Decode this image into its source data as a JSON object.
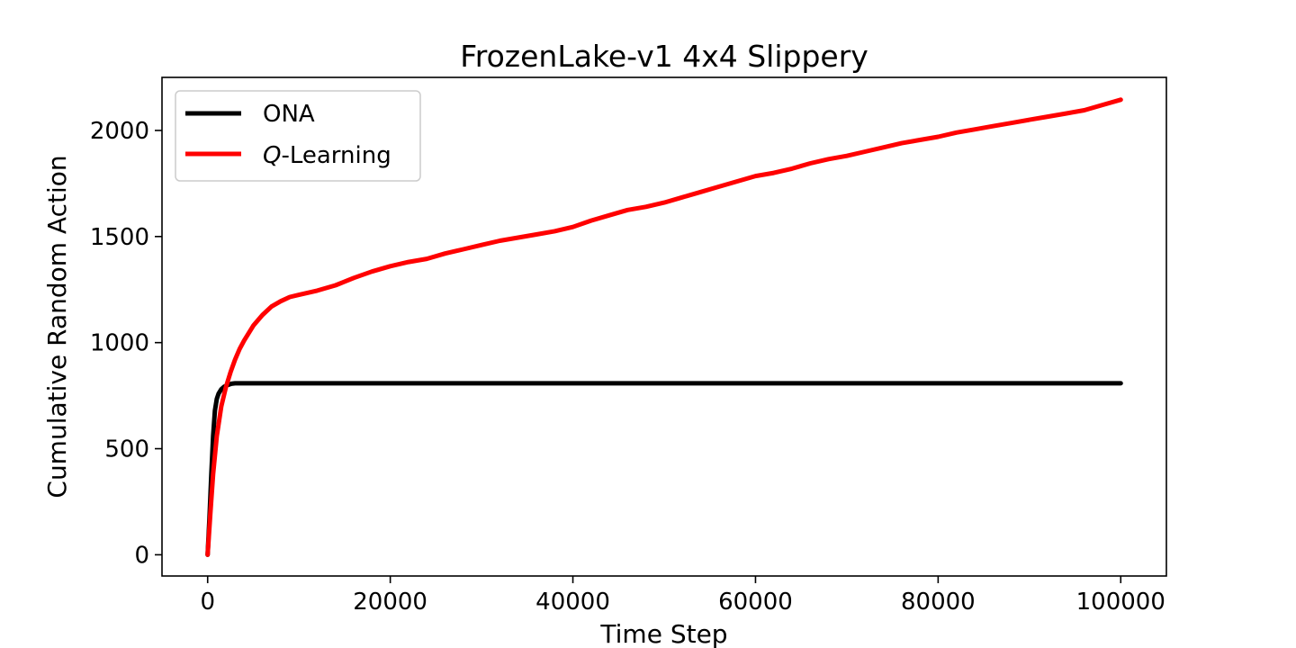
{
  "chart_data": {
    "type": "line",
    "title": "FrozenLake-v1 4x4 Slippery",
    "xlabel": "Time Step",
    "ylabel": "Cumulative Random Action",
    "xlim": [
      -5000,
      105000
    ],
    "ylim": [
      -100,
      2250
    ],
    "xticks": [
      0,
      20000,
      40000,
      60000,
      80000,
      100000
    ],
    "yticks": [
      0,
      500,
      1000,
      1500,
      2000
    ],
    "grid": false,
    "legend_position": "top-left",
    "series": [
      {
        "name": "ONA",
        "color": "#000000",
        "x": [
          0,
          200,
          400,
          600,
          800,
          1000,
          1200,
          1500,
          1800,
          2200,
          2600,
          3000,
          5000,
          10000,
          20000,
          40000,
          60000,
          80000,
          100000
        ],
        "y": [
          0,
          180,
          380,
          560,
          680,
          735,
          760,
          780,
          792,
          800,
          806,
          808,
          808,
          808,
          808,
          808,
          808,
          808,
          808
        ]
      },
      {
        "name": "Q-Learning",
        "name_prefix": "Q",
        "name_suffix": "-Learning",
        "color": "#ff0000",
        "x": [
          0,
          300,
          600,
          1000,
          1500,
          2000,
          2500,
          3000,
          3500,
          4000,
          4500,
          5000,
          6000,
          7000,
          8000,
          9000,
          10000,
          12000,
          14000,
          16000,
          18000,
          20000,
          22000,
          24000,
          26000,
          28000,
          30000,
          32000,
          34000,
          36000,
          38000,
          40000,
          42000,
          44000,
          46000,
          48000,
          50000,
          52000,
          54000,
          56000,
          58000,
          60000,
          62000,
          64000,
          66000,
          68000,
          70000,
          72000,
          74000,
          76000,
          78000,
          80000,
          82000,
          84000,
          86000,
          88000,
          90000,
          92000,
          94000,
          96000,
          98000,
          100000
        ],
        "y": [
          0,
          200,
          380,
          560,
          700,
          790,
          860,
          920,
          970,
          1010,
          1045,
          1080,
          1130,
          1170,
          1195,
          1215,
          1225,
          1245,
          1270,
          1305,
          1335,
          1360,
          1380,
          1395,
          1420,
          1440,
          1460,
          1480,
          1495,
          1510,
          1525,
          1545,
          1575,
          1600,
          1625,
          1640,
          1660,
          1685,
          1710,
          1735,
          1760,
          1785,
          1800,
          1820,
          1845,
          1865,
          1880,
          1900,
          1920,
          1940,
          1955,
          1970,
          1990,
          2005,
          2020,
          2035,
          2050,
          2065,
          2080,
          2095,
          2120,
          2145
        ]
      }
    ]
  }
}
